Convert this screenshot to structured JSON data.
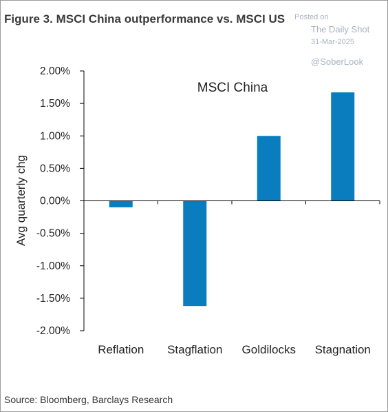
{
  "header": {
    "title": "Figure 3. MSCI China outperformance vs. MSCI US"
  },
  "watermark": {
    "posted": "Posted on",
    "site": "The Daily Shot",
    "date": "31-Mar-2025",
    "handle": "@SoberLook"
  },
  "footer": {
    "source": "Source: Bloomberg, Barclays Research"
  },
  "colors": {
    "bar": "#0a7dbe",
    "axis": "#000000"
  },
  "chart_data": {
    "type": "bar",
    "title": "",
    "series_label": "MSCI China",
    "ylabel": "Avg quarterly chg",
    "xlabel": "",
    "categories": [
      "Reflation",
      "Stagflation",
      "Goldilocks",
      "Stagnation"
    ],
    "values": [
      -0.1,
      -1.62,
      1.0,
      1.67
    ],
    "ylim": [
      -2.0,
      2.0
    ],
    "yticks": [
      2.0,
      1.5,
      1.0,
      0.5,
      0.0,
      -0.5,
      -1.0,
      -1.5,
      -2.0
    ],
    "ytick_labels": [
      "2.00%",
      "1.50%",
      "1.00%",
      "0.50%",
      "0.00%",
      "-0.50%",
      "-1.00%",
      "-1.50%",
      "-2.00%"
    ],
    "grid": false,
    "legend": "none"
  }
}
